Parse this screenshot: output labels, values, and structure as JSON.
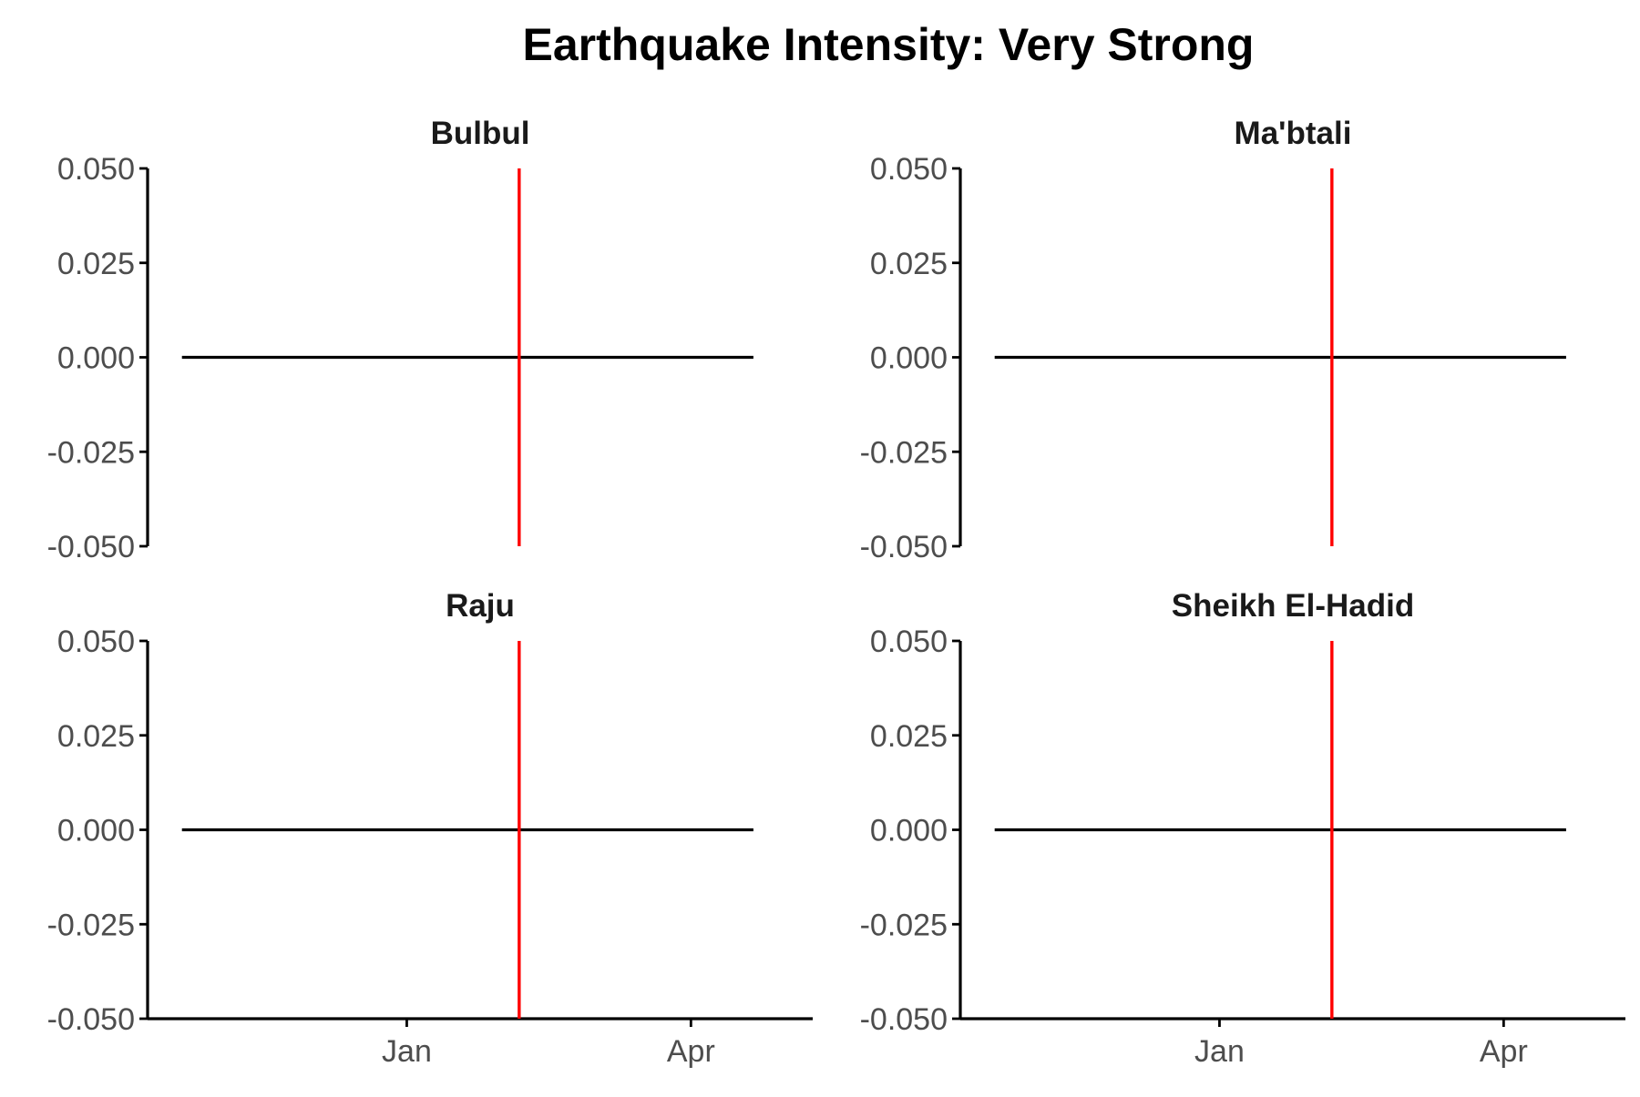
{
  "chart_data": {
    "type": "line",
    "title": "Earthquake Intensity: Very Strong",
    "xlabel": "",
    "ylabel": "",
    "x_axis": {
      "type": "date",
      "ticks": [
        {
          "label": "Jan",
          "value": "2000-01-01"
        },
        {
          "label": "Apr",
          "value": "2000-04-01"
        }
      ],
      "range": [
        "1999-10-10",
        "2000-05-10"
      ]
    },
    "y_axis": {
      "range": [
        -0.05,
        0.05
      ],
      "ticks": [
        0.05,
        0.025,
        0.0,
        -0.025,
        -0.05
      ],
      "tick_labels": [
        "0.050",
        "0.025",
        "0.000",
        "-0.025",
        "-0.050"
      ]
    },
    "grid": false,
    "event_line_color": "#ff0000",
    "series_color": "#000000",
    "facets": [
      {
        "name": "Bulbul",
        "series": {
          "x": [
            "1999-10-21",
            "2000-04-21"
          ],
          "y": [
            0,
            0
          ]
        },
        "event_date": "2000-02-06"
      },
      {
        "name": "Ma'btali",
        "series": {
          "x": [
            "1999-10-21",
            "2000-04-21"
          ],
          "y": [
            0,
            0
          ]
        },
        "event_date": "2000-02-06"
      },
      {
        "name": "Raju",
        "series": {
          "x": [
            "1999-10-21",
            "2000-04-21"
          ],
          "y": [
            0,
            0
          ]
        },
        "event_date": "2000-02-06"
      },
      {
        "name": "Sheikh El-Hadid",
        "series": {
          "x": [
            "1999-10-21",
            "2000-04-21"
          ],
          "y": [
            0,
            0
          ]
        },
        "event_date": "2000-02-06"
      }
    ]
  }
}
